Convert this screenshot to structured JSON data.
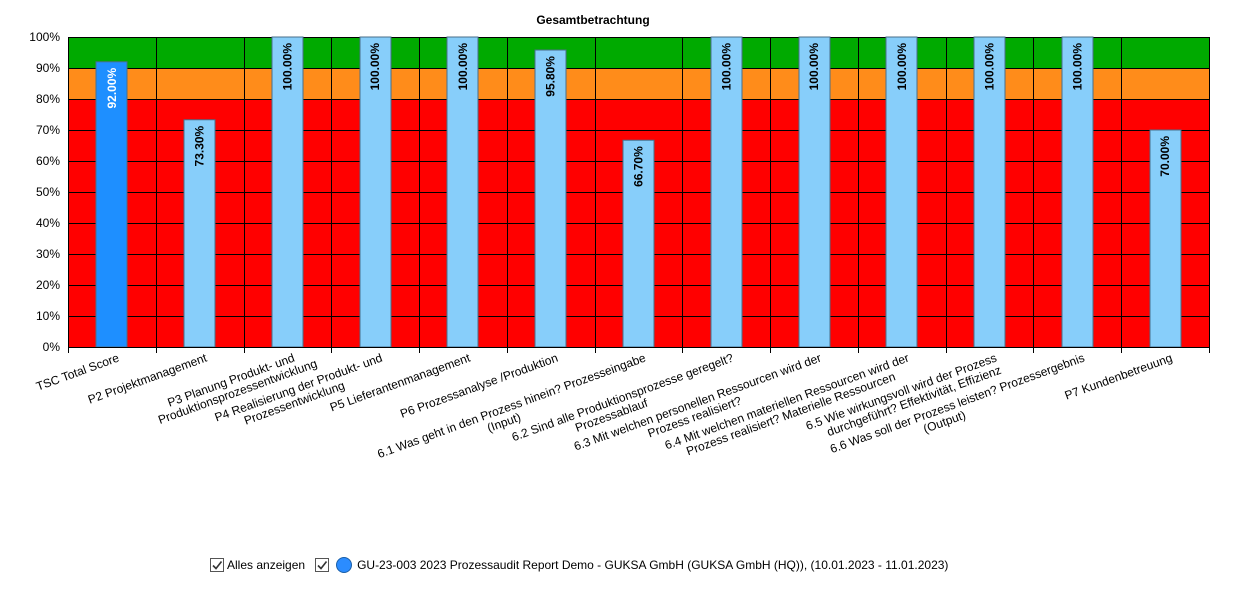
{
  "colors": {
    "zone_green": "#00aa00",
    "zone_orange": "#ff8c1a",
    "zone_red": "#ff0000",
    "bar_highlight": "#1e8fff",
    "bar_normal": "#87cefa",
    "legend_dot": "#2b8cff"
  },
  "legend": {
    "show_all_label": "Alles anzeigen",
    "series_label": "GU-23-003 2023 Prozessaudit Report Demo - GUKSA GmbH (GUKSA GmbH (HQ)), (10.01.2023 - 11.01.2023)",
    "show_all_icon": "checkbox-checked-icon",
    "series_icon": "checkbox-checked-icon"
  },
  "chart_data": {
    "type": "bar",
    "title": "Gesamtbetrachtung",
    "xlabel": "",
    "ylabel": "",
    "ylim": [
      0,
      100
    ],
    "ytick_labels": [
      "0%",
      "10%",
      "20%",
      "30%",
      "40%",
      "50%",
      "60%",
      "70%",
      "80%",
      "90%",
      "100%"
    ],
    "bands": [
      {
        "from": 90,
        "to": 100,
        "color": "#00aa00"
      },
      {
        "from": 80,
        "to": 90,
        "color": "#ff8c1a"
      },
      {
        "from": 0,
        "to": 80,
        "color": "#ff0000"
      }
    ],
    "categories": [
      [
        "TSC Total Score"
      ],
      [
        "P2 Projektmanagement"
      ],
      [
        "P3 Planung Produkt- und",
        "Produktionsprozessentwicklung"
      ],
      [
        "P4 Realisierung der Produkt- und",
        "Prozessentwicklung"
      ],
      [
        "P5 Lieferantenmanagement"
      ],
      [
        "P6 Prozessanalyse /Produktion"
      ],
      [
        "6.1 Was geht in den Prozess hinein? Prozesseingabe",
        "(Input)"
      ],
      [
        "6.2 Sind alle Produktionsprozesse geregelt?",
        "Prozessablauf"
      ],
      [
        "6.3 Mit welchen personellen Ressourcen wird der",
        "Prozess realisiert?"
      ],
      [
        "6.4 Mit welchen materiellen Ressourcen wird der",
        "Prozess realisiert? Materielle Ressourcen"
      ],
      [
        "6.5 Wie wirkungsvoll wird der Prozess",
        "durchgeführt? Effektivität, Effizienz"
      ],
      [
        "6.6 Was soll der Prozess leisten? Prozessergebnis",
        "(Output)"
      ],
      [
        "P7 Kundenbetreuung"
      ]
    ],
    "values": [
      92.0,
      73.3,
      100.0,
      100.0,
      100.0,
      95.8,
      66.7,
      100.0,
      100.0,
      100.0,
      100.0,
      100.0,
      70.0
    ],
    "value_labels": [
      "92.00%",
      "73.30%",
      "100.00%",
      "100.00%",
      "100.00%",
      "95.80%",
      "66.70%",
      "100.00%",
      "100.00%",
      "100.00%",
      "100.00%",
      "100.00%",
      "70.00%"
    ],
    "highlight_index": 0,
    "series": [
      {
        "name": "GU-23-003 2023 Prozessaudit Report Demo - GUKSA GmbH (GUKSA GmbH (HQ)), (10.01.2023 - 11.01.2023)"
      }
    ]
  }
}
